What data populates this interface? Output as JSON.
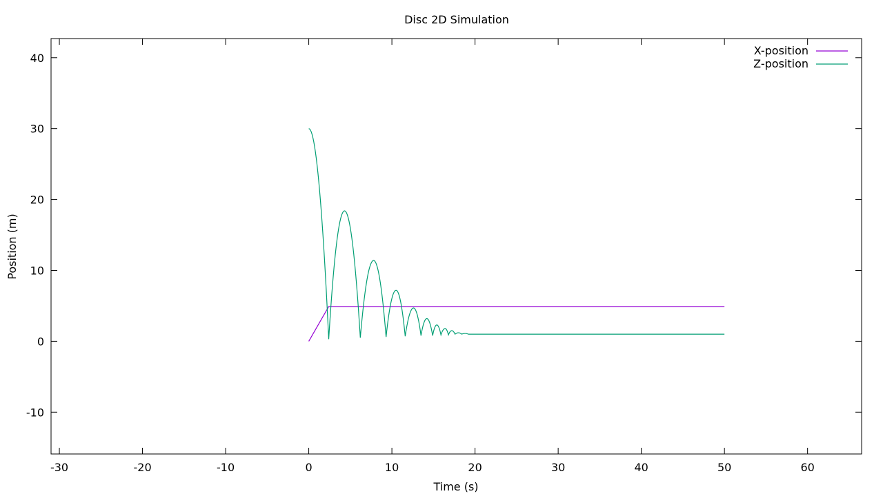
{
  "chart_data": {
    "type": "line",
    "title": "Disc 2D Simulation",
    "xlabel": "Time (s)",
    "ylabel": "Position (m)",
    "xlim": [
      -31,
      66.5
    ],
    "ylim": [
      -15.9,
      42.7
    ],
    "xticks": [
      -30,
      -20,
      -10,
      0,
      10,
      20,
      30,
      40,
      50,
      60
    ],
    "yticks": [
      -10,
      0,
      10,
      20,
      30,
      40
    ],
    "grid": false,
    "legend": "top-right",
    "series": [
      {
        "name": "X-position",
        "color": "#9400d3",
        "x": [
          0,
          2.4,
          50
        ],
        "y": [
          0,
          4.9,
          4.9
        ]
      },
      {
        "name": "Z-position",
        "color": "#009e73",
        "x": [
          0,
          2.4,
          4.3,
          6.2,
          7.8,
          9.3,
          10.5,
          11.6,
          12.6,
          13.5,
          14.2,
          14.9,
          15.4,
          15.9,
          16.4,
          16.8,
          17.2,
          17.6,
          18.0,
          18.4,
          18.8,
          19.2,
          50
        ],
        "y": [
          30,
          0.3,
          18.4,
          0.5,
          11.4,
          0.6,
          7.2,
          0.7,
          4.7,
          0.8,
          3.2,
          0.8,
          2.3,
          0.9,
          1.8,
          0.9,
          1.5,
          1.0,
          1.2,
          1.0,
          1.1,
          1.0,
          1.0
        ]
      }
    ]
  }
}
